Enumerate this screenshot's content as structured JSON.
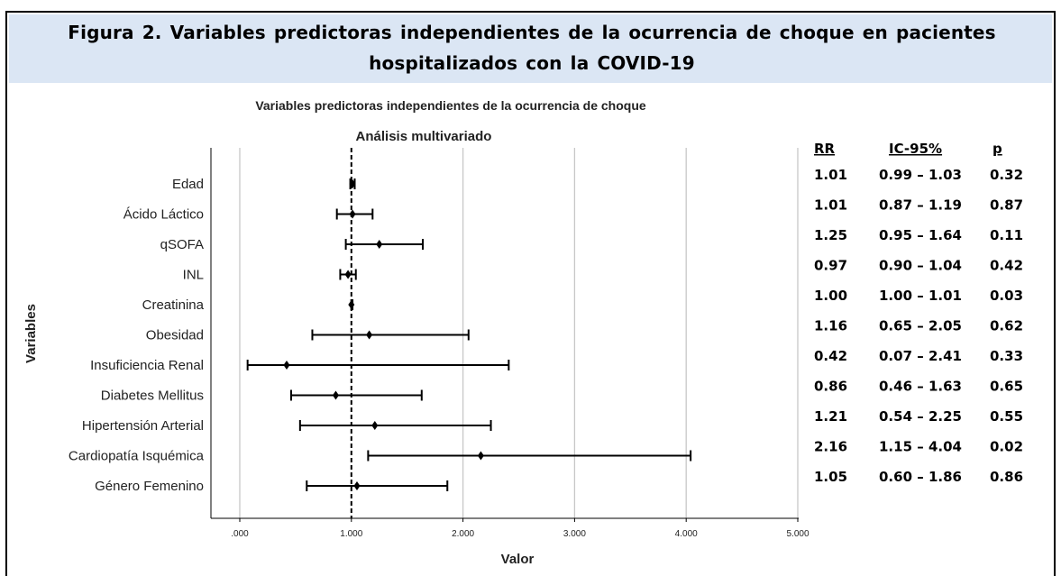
{
  "figure_title": "Figura 2. Variables predictoras independientes de la ocurrencia de choque en pacientes hospitalizados con la COVID-19",
  "colors": {
    "title_band": "#dbe6f4",
    "grid": "#c8c8c8",
    "reference_line": "#000000",
    "marks": "#000000"
  },
  "chart_data": {
    "type": "forest",
    "title": "Variables predictoras independientes de la ocurrencia de choque",
    "subtitle": "Análisis multivariado",
    "xlabel": "Valor",
    "ylabel": "Variables",
    "xlim": [
      0,
      5
    ],
    "x_ticks": [
      ".000",
      "1.000",
      "2.000",
      "3.000",
      "4.000",
      "5.000"
    ],
    "x_tick_values": [
      0,
      1,
      2,
      3,
      4,
      5
    ],
    "reference_value": 1,
    "grid": true,
    "table_headers": [
      "RR",
      "IC-95%",
      "p"
    ],
    "rows": [
      {
        "label": "Edad",
        "rr": 1.01,
        "lo": 0.99,
        "hi": 1.03,
        "rr_text": "1.01",
        "ci_text": "0.99 – 1.03",
        "p_text": "0.32"
      },
      {
        "label": "Ácido Láctico",
        "rr": 1.01,
        "lo": 0.87,
        "hi": 1.19,
        "rr_text": "1.01",
        "ci_text": "0.87 – 1.19",
        "p_text": "0.87"
      },
      {
        "label": "qSOFA",
        "rr": 1.25,
        "lo": 0.95,
        "hi": 1.64,
        "rr_text": "1.25",
        "ci_text": "0.95 – 1.64",
        "p_text": "0.11"
      },
      {
        "label": "INL",
        "rr": 0.97,
        "lo": 0.9,
        "hi": 1.04,
        "rr_text": "0.97",
        "ci_text": "0.90 – 1.04",
        "p_text": "0.42"
      },
      {
        "label": "Creatinina",
        "rr": 1.0,
        "lo": 1.0,
        "hi": 1.01,
        "rr_text": "1.00",
        "ci_text": "1.00 – 1.01",
        "p_text": "0.03"
      },
      {
        "label": "Obesidad",
        "rr": 1.16,
        "lo": 0.65,
        "hi": 2.05,
        "rr_text": "1.16",
        "ci_text": "0.65 – 2.05",
        "p_text": "0.62"
      },
      {
        "label": "Insuficiencia Renal",
        "rr": 0.42,
        "lo": 0.07,
        "hi": 2.41,
        "rr_text": "0.42",
        "ci_text": "0.07 – 2.41",
        "p_text": "0.33"
      },
      {
        "label": "Diabetes Mellitus",
        "rr": 0.86,
        "lo": 0.46,
        "hi": 1.63,
        "rr_text": "0.86",
        "ci_text": "0.46 – 1.63",
        "p_text": "0.65"
      },
      {
        "label": "Hipertensión Arterial",
        "rr": 1.21,
        "lo": 0.54,
        "hi": 2.25,
        "rr_text": "1.21",
        "ci_text": "0.54 – 2.25",
        "p_text": "0.55"
      },
      {
        "label": "Cardiopatía Isquémica",
        "rr": 2.16,
        "lo": 1.15,
        "hi": 4.04,
        "rr_text": "2.16",
        "ci_text": "1.15 – 4.04",
        "p_text": "0.02"
      },
      {
        "label": "Género Femenino",
        "rr": 1.05,
        "lo": 0.6,
        "hi": 1.86,
        "rr_text": "1.05",
        "ci_text": "0.60 – 1.86",
        "p_text": "0.86"
      }
    ]
  }
}
